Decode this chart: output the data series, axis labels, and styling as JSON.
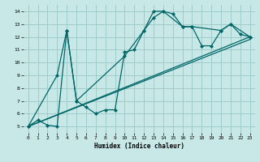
{
  "title": "",
  "xlabel": "Humidex (Indice chaleur)",
  "ylabel": "",
  "background_color": "#c8e8e8",
  "grid_color": "#a0cccc",
  "line_color": "#006666",
  "xlim": [
    -0.5,
    23.5
  ],
  "ylim": [
    4.5,
    14.5
  ],
  "xticks": [
    0,
    1,
    2,
    3,
    4,
    5,
    6,
    7,
    8,
    9,
    10,
    11,
    12,
    13,
    14,
    15,
    16,
    17,
    18,
    19,
    20,
    21,
    22,
    23
  ],
  "yticks": [
    5,
    6,
    7,
    8,
    9,
    10,
    11,
    12,
    13,
    14
  ],
  "series": [
    {
      "x": [
        0,
        1,
        2,
        3,
        4,
        5,
        6,
        7,
        8,
        9,
        10,
        11,
        12,
        13,
        14,
        15,
        16,
        17,
        18,
        19,
        20,
        21,
        22,
        23
      ],
      "y": [
        5.0,
        5.5,
        5.1,
        5.0,
        12.5,
        7.0,
        6.5,
        6.0,
        6.3,
        6.3,
        10.8,
        11.0,
        12.5,
        14.0,
        14.0,
        13.8,
        12.8,
        12.8,
        11.3,
        11.3,
        12.5,
        13.0,
        12.2,
        12.0
      ],
      "marker": "D",
      "markersize": 2.0
    },
    {
      "x": [
        0,
        3,
        4,
        5,
        10,
        12,
        13,
        14,
        16,
        17,
        20,
        21,
        23
      ],
      "y": [
        5.0,
        9.0,
        12.5,
        7.0,
        10.5,
        12.5,
        13.5,
        14.0,
        12.8,
        12.8,
        12.5,
        13.0,
        12.0
      ],
      "marker": "D",
      "markersize": 2.0
    },
    {
      "x": [
        0,
        23
      ],
      "y": [
        5.0,
        12.0
      ],
      "marker": null,
      "markersize": 0
    },
    {
      "x": [
        0,
        23
      ],
      "y": [
        5.0,
        11.8
      ],
      "marker": null,
      "markersize": 0
    }
  ]
}
